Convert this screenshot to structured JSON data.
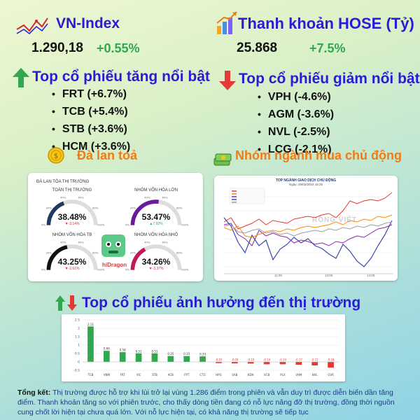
{
  "vnindex": {
    "title": "VN-Index",
    "value": "1.290,18",
    "change": "+0.55%"
  },
  "liquidity": {
    "title": "Thanh khoản HOSE (Tỷ)",
    "value": "25.868",
    "change": "+7.5%"
  },
  "top_gainers": {
    "title": "Top cổ phiếu tăng nổi bật",
    "items": [
      "FRT (+6.7%)",
      "TCB (+5.4%)",
      "STB (+3.6%)",
      "HCM (+3.6%)"
    ]
  },
  "top_losers": {
    "title": "Top cổ phiếu giảm nổi bật",
    "items": [
      "VPH (-4.6%)",
      "AGM (-3.6%)",
      "NVL (-2.5%)",
      "LCG (-2.1%)"
    ]
  },
  "spread": {
    "title": "Đà lan toả",
    "panel_title": "ĐÀ LAN TỎA THỊ TRƯỜNG",
    "watermark": "hiDragon",
    "gauges": [
      {
        "title": "TOÀN THỊ TRƯỜNG",
        "value": "38.48%",
        "change": "▼-3.14%",
        "fraction": 0.3848,
        "color": "#1f3a5f",
        "chg_color": "#d62828"
      },
      {
        "title": "NHÓM VỐN HÓA LỚN",
        "value": "53.47%",
        "change": "▲7.92%",
        "fraction": 0.5347,
        "color": "#6a1b9a",
        "chg_color": "#2fa84f"
      },
      {
        "title": "NHÓM VỐN HÓA TB",
        "value": "43.25%",
        "change": "▼-2.61%",
        "fraction": 0.4325,
        "color": "#111111",
        "chg_color": "#d62828"
      },
      {
        "title": "NHÓM VỐN HÓA NHỎ",
        "value": "34.26%",
        "change": "▼-3.37%",
        "fraction": 0.3426,
        "color": "#c2185b",
        "chg_color": "#d62828"
      }
    ],
    "ticks": [
      "0%",
      "20%",
      "40%",
      "60%",
      "80%",
      "100%"
    ]
  },
  "active_sectors": {
    "title": "Nhóm ngành mua chủ động",
    "chart_title": "TOP NGÀNH GIAO DỊCH CHỦ ĐỘNG",
    "chart_date": "Ngày: 28/02/2024 15:25",
    "watermark": "RỒNG VIỆT",
    "x_ticks": [
      "11:00",
      "13:00",
      "14:00"
    ]
  },
  "influence": {
    "title": "Top cổ phiếu ảnh hưởng đến thị trường"
  },
  "chart_data": {
    "type": "bar",
    "categories": [
      "TCB",
      "VNM",
      "FRT",
      "VIC",
      "STB",
      "ACB",
      "FPT",
      "CTG",
      "HPG",
      "SAB",
      "KDH",
      "VCB",
      "PLX",
      "VHM",
      "NVL",
      "GVR"
    ],
    "values": [
      2.11,
      0.66,
      0.58,
      0.51,
      0.51,
      0.35,
      0.35,
      0.33,
      -0.07,
      -0.09,
      -0.1,
      -0.14,
      -0.14,
      -0.17,
      -0.21,
      -0.34
    ],
    "value_labels": [
      "2.11",
      "0.66",
      "0.58",
      "0.51",
      "0.51",
      "0.35",
      "0.35",
      "0.33",
      "-0.07",
      "-0.09",
      "-0.10",
      "-0.14",
      "-0.14",
      "-0.17",
      "-0.21",
      "-0.34"
    ],
    "y_ticks": [
      "2.5",
      "2",
      "1.5",
      "1",
      "0.5",
      "0",
      "-0.5"
    ],
    "ylim": [
      -0.5,
      2.5
    ],
    "colors": {
      "positive": "#2fa84f",
      "negative": "#e53935"
    },
    "grid": true
  },
  "summary": {
    "label": "Tổng kết:",
    "text": " Thị trường được hỗ trợ khi lùi trở lại vùng 1.286 điểm trong phiên và vẫn duy trì được diễn biến dần tăng điểm. Thanh khoản tăng so với phiên trước, cho thấy dòng tiền đang có nỗ lực nâng đỡ thị trường, đồng thời nguồn cung chốt lời hiện tại chưa quá lớn. Với nỗ lực hiện tại, có khả năng thị trường sẽ tiếp tục"
  }
}
